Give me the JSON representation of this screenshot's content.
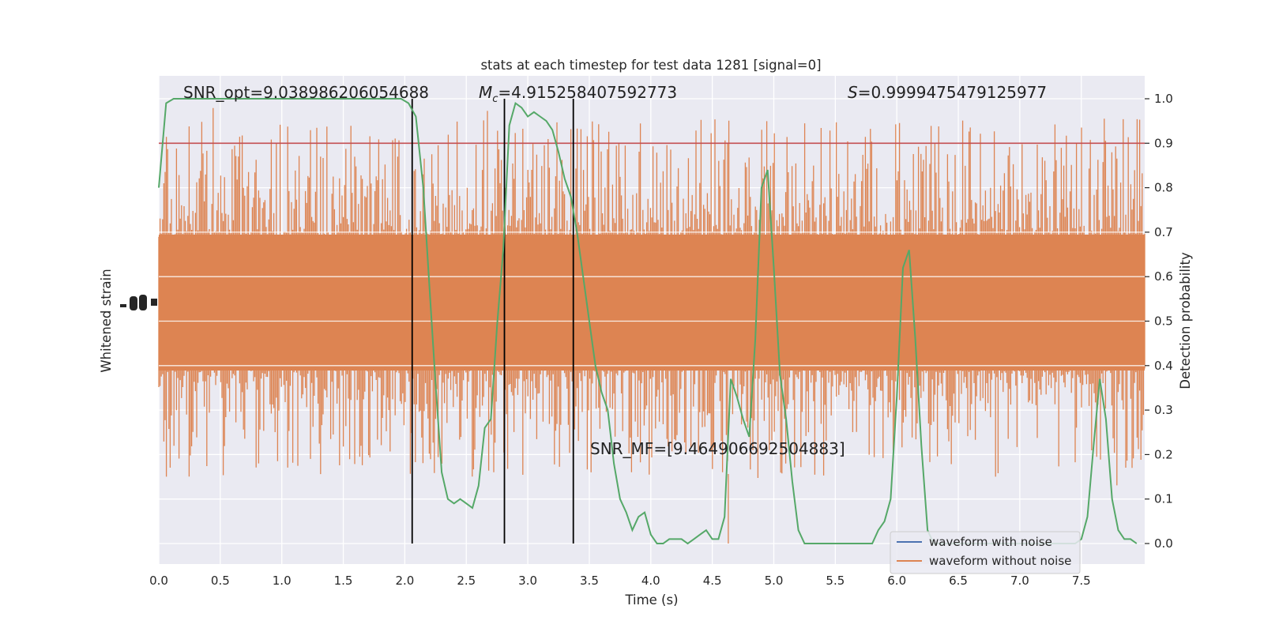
{
  "chart_data": {
    "type": "line",
    "title": "stats at each timestep for test data 1281 [signal=0]",
    "xlabel": "Time (s)",
    "ylabel_left": "Whitened strain",
    "ylabel_right": "Detection probability",
    "xlim": [
      0.0,
      8.0
    ],
    "ylim_right": [
      -0.05,
      1.05
    ],
    "x_ticks": [
      "0.0",
      "0.5",
      "1.0",
      "1.5",
      "2.0",
      "2.5",
      "3.0",
      "3.5",
      "4.0",
      "4.5",
      "5.0",
      "5.5",
      "6.0",
      "6.5",
      "7.0",
      "7.5"
    ],
    "y_ticks_right": [
      "0.0",
      "0.1",
      "0.2",
      "0.3",
      "0.4",
      "0.5",
      "0.6",
      "0.7",
      "0.8",
      "0.9",
      "1.0"
    ],
    "grid": true,
    "threshold": 0.9,
    "vlines": [
      2.06,
      2.81,
      3.37
    ],
    "annotations": {
      "snr_opt": "SNR_opt=9.038986206054688",
      "mc_symbol": "M",
      "mc_sub": "c",
      "mc_value": "=4.915258407592773",
      "s_symbol": "S",
      "s_value": "=0.9999475479125977",
      "snr_mf": "SNR_MF=[9.464906692504883]"
    },
    "series": [
      {
        "name": "waveform with noise",
        "color": "#4c72b0"
      },
      {
        "name": "waveform without noise",
        "color": "#dd8452"
      },
      {
        "color": "#55a868",
        "x": [
          0.0,
          0.06,
          0.12,
          0.18,
          0.25,
          0.31,
          0.37,
          0.43,
          0.49,
          0.55,
          0.62,
          0.68,
          0.74,
          0.8,
          0.86,
          0.92,
          0.99,
          1.05,
          1.11,
          1.17,
          1.23,
          1.29,
          1.36,
          1.42,
          1.48,
          1.54,
          1.6,
          1.66,
          1.73,
          1.79,
          1.85,
          1.91,
          1.97,
          2.03,
          2.09,
          2.15,
          2.2,
          2.25,
          2.3,
          2.35,
          2.4,
          2.45,
          2.5,
          2.55,
          2.6,
          2.65,
          2.7,
          2.75,
          2.8,
          2.85,
          2.9,
          2.95,
          3.0,
          3.05,
          3.1,
          3.15,
          3.2,
          3.25,
          3.3,
          3.35,
          3.4,
          3.45,
          3.5,
          3.55,
          3.6,
          3.65,
          3.7,
          3.75,
          3.8,
          3.85,
          3.9,
          3.95,
          4.0,
          4.05,
          4.1,
          4.15,
          4.2,
          4.25,
          4.3,
          4.35,
          4.4,
          4.45,
          4.5,
          4.55,
          4.6,
          4.65,
          4.7,
          4.75,
          4.8,
          4.85,
          4.9,
          4.95,
          5.0,
          5.05,
          5.1,
          5.15,
          5.2,
          5.25,
          5.3,
          5.35,
          5.4,
          5.45,
          5.5,
          5.55,
          5.6,
          5.65,
          5.7,
          5.75,
          5.8,
          5.85,
          5.9,
          5.95,
          6.0,
          6.05,
          6.1,
          6.15,
          6.2,
          6.25,
          6.3,
          6.35,
          6.4,
          6.45,
          6.5,
          6.55,
          6.6,
          6.65,
          6.7,
          6.75,
          6.8,
          6.85,
          6.9,
          6.95,
          7.0,
          7.05,
          7.1,
          7.15,
          7.2,
          7.25,
          7.3,
          7.35,
          7.4,
          7.45,
          7.5,
          7.55,
          7.6,
          7.65,
          7.7,
          7.75,
          7.8,
          7.85,
          7.9,
          7.95
        ],
        "y": [
          0.8,
          0.99,
          1.0,
          1.0,
          1.0,
          1.0,
          1.0,
          1.0,
          1.0,
          1.0,
          1.0,
          1.0,
          1.0,
          1.0,
          1.0,
          1.0,
          1.0,
          1.0,
          1.0,
          1.0,
          1.0,
          1.0,
          1.0,
          1.0,
          1.0,
          1.0,
          1.0,
          1.0,
          1.0,
          1.0,
          1.0,
          1.0,
          1.0,
          0.99,
          0.96,
          0.8,
          0.58,
          0.36,
          0.16,
          0.1,
          0.09,
          0.1,
          0.09,
          0.08,
          0.13,
          0.26,
          0.28,
          0.49,
          0.66,
          0.94,
          0.99,
          0.98,
          0.96,
          0.97,
          0.96,
          0.95,
          0.93,
          0.88,
          0.82,
          0.78,
          0.7,
          0.6,
          0.5,
          0.4,
          0.34,
          0.3,
          0.18,
          0.1,
          0.07,
          0.03,
          0.06,
          0.07,
          0.02,
          0.0,
          0.0,
          0.01,
          0.01,
          0.01,
          0.0,
          0.01,
          0.02,
          0.03,
          0.01,
          0.01,
          0.06,
          0.37,
          0.33,
          0.28,
          0.24,
          0.46,
          0.8,
          0.84,
          0.62,
          0.38,
          0.28,
          0.14,
          0.03,
          0.0,
          0.0,
          0.0,
          0.0,
          0.0,
          0.0,
          0.0,
          0.0,
          0.0,
          0.0,
          0.0,
          0.0,
          0.03,
          0.05,
          0.1,
          0.33,
          0.62,
          0.66,
          0.46,
          0.22,
          0.03,
          0.0,
          0.0,
          0.0,
          0.0,
          0.0,
          0.0,
          0.0,
          0.0,
          0.0,
          0.0,
          0.0,
          0.0,
          0.0,
          0.0,
          0.0,
          0.0,
          0.0,
          0.0,
          0.0,
          0.0,
          0.0,
          0.0,
          0.0,
          0.0,
          0.01,
          0.06,
          0.22,
          0.37,
          0.28,
          0.1,
          0.03,
          0.01,
          0.01,
          0.0
        ]
      }
    ]
  }
}
